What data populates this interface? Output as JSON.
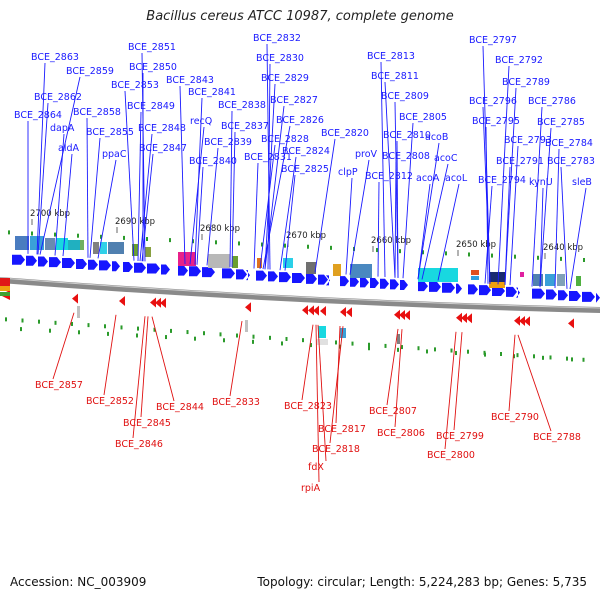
{
  "title": "Bacillus cereus ATCC 10987, complete genome",
  "accession_text": "Accession: NC_003909",
  "summary_text": "Topology: circular; Length: 5,224,283 bp; Genes: 5,735",
  "colors": {
    "forward_gene": "#1616ff",
    "reverse_gene": "#e81010",
    "top_label": "#1a1aff",
    "bottom_label": "#e01010",
    "backbone": "#777777",
    "tick": "#2a9a2a"
  },
  "ruler_labels": [
    "2700 kbp",
    "2690 kbp",
    "2680 kbp",
    "2670 kbp",
    "2660 kbp",
    "2650 kbp",
    "2640 kbp"
  ],
  "top_labels": [
    "BCE_2863",
    "BCE_2851",
    "BCE_2832",
    "BCE_2797",
    "BCE_2850",
    "BCE_2830",
    "BCE_2813",
    "BCE_2792",
    "BCE_2859",
    "BCE_2853",
    "BCE_2843",
    "BCE_2829",
    "BCE_2811",
    "BCE_2789",
    "BCE_2862",
    "BCE_2841",
    "BCE_2827",
    "BCE_2809",
    "BCE_2796",
    "BCE_2786",
    "BCE_2864",
    "BCE_2858",
    "BCE_2849",
    "BCE_2838",
    "BCE_2826",
    "BCE_2805",
    "BCE_2795",
    "BCE_2785",
    "dapA",
    "recQ",
    "BCE_2837",
    "acoB",
    "BCE_2793",
    "BCE_2784",
    "BCE_2855",
    "BCE_2848",
    "BCE_2828",
    "BCE_2820",
    "BCE_2810",
    "aldA",
    "ppaC",
    "BCE_2847",
    "BCE_2839",
    "BCE_2824",
    "proV",
    "BCE_2808",
    "acoC",
    "BCE_2791",
    "BCE_2783",
    "BCE_2840",
    "BCE_2831",
    "BCE_2825",
    "clpP",
    "BCE_2812",
    "acoA",
    "acoL",
    "BCE_2794",
    "kynU",
    "sleB"
  ],
  "bottom_labels": [
    "BCE_2857",
    "BCE_2852",
    "BCE_2844",
    "BCE_2833",
    "BCE_2845",
    "BCE_2823",
    "BCE_2846",
    "BCE_2807",
    "BCE_2790",
    "BCE_2817",
    "BCE_2806",
    "BCE_2799",
    "BCE_2788",
    "BCE_2818",
    "BCE_2800",
    "fdX",
    "rpiA"
  ]
}
